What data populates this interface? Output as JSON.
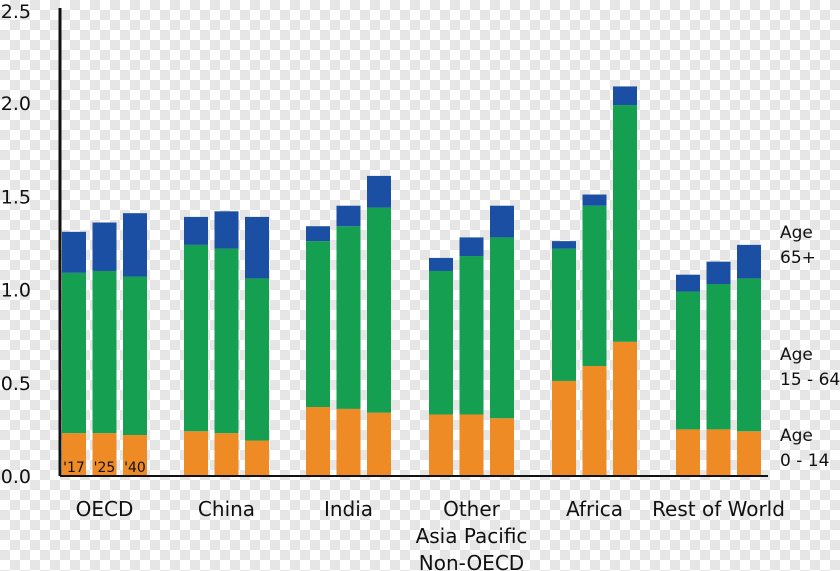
{
  "chart_data": {
    "type": "bar",
    "stacked": true,
    "ylim": [
      0,
      2.5
    ],
    "yticks": [
      "0.0",
      "0.5",
      "1.0",
      "1.5",
      "2.0",
      "2.5"
    ],
    "grid": false,
    "legend": "right",
    "categories": [
      [
        "OECD"
      ],
      [
        "China"
      ],
      [
        "India"
      ],
      [
        "Other",
        "Asia Pacific",
        "Non-OECD"
      ],
      [
        "Africa"
      ],
      [
        "Rest of World"
      ]
    ],
    "year_labels": [
      "'17",
      "'25",
      "'40"
    ],
    "series": [
      {
        "name": "Age 0 - 14",
        "label_lines": [
          "Age",
          "0 - 14"
        ],
        "color": "#ef8b24",
        "values": [
          [
            0.23,
            0.23,
            0.22
          ],
          [
            0.24,
            0.23,
            0.19
          ],
          [
            0.37,
            0.36,
            0.34
          ],
          [
            0.33,
            0.33,
            0.31
          ],
          [
            0.51,
            0.59,
            0.72
          ],
          [
            0.25,
            0.25,
            0.24
          ]
        ]
      },
      {
        "name": "Age 15 - 64",
        "label_lines": [
          "Age",
          "15 - 64"
        ],
        "color": "#14a050",
        "values": [
          [
            0.86,
            0.87,
            0.85
          ],
          [
            1.0,
            0.99,
            0.87
          ],
          [
            0.89,
            0.98,
            1.1
          ],
          [
            0.77,
            0.85,
            0.97
          ],
          [
            0.71,
            0.86,
            1.27
          ],
          [
            0.74,
            0.78,
            0.82
          ]
        ]
      },
      {
        "name": "Age 65+",
        "label_lines": [
          "Age",
          "65+"
        ],
        "color": "#1b4fa3",
        "values": [
          [
            0.22,
            0.26,
            0.34
          ],
          [
            0.15,
            0.2,
            0.33
          ],
          [
            0.08,
            0.11,
            0.17
          ],
          [
            0.07,
            0.1,
            0.17
          ],
          [
            0.04,
            0.06,
            0.1
          ],
          [
            0.09,
            0.12,
            0.18
          ]
        ]
      }
    ]
  }
}
